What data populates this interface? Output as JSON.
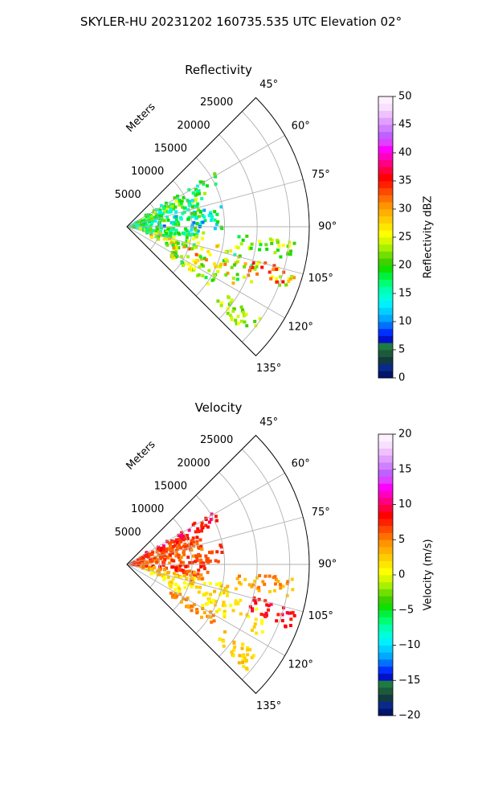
{
  "figure": {
    "title": "SKYLER-HU  20231202  160735.535 UTC Elevation 02°"
  },
  "chart_data": [
    {
      "type": "heatmap",
      "subtype": "polar-sector",
      "title": "Reflectivity",
      "radial_label": "Meters",
      "range_ticks": [
        "5000",
        "10000",
        "15000",
        "20000",
        "25000"
      ],
      "range_values": [
        5000,
        10000,
        15000,
        20000,
        25000
      ],
      "range_max": 28000,
      "azimuth_ticks": [
        "45°",
        "60°",
        "75°",
        "90°",
        "105°",
        "120°",
        "135°"
      ],
      "azimuth_values": [
        45,
        60,
        75,
        90,
        105,
        120,
        135
      ],
      "azimuth_range": [
        45,
        135
      ],
      "grid": true,
      "colorbar": {
        "label": "Reflectivity dBZ",
        "min": 0,
        "max": 50,
        "ticks": [
          "0",
          "5",
          "10",
          "15",
          "20",
          "25",
          "30",
          "35",
          "40",
          "45",
          "50"
        ],
        "tick_values": [
          0,
          5,
          10,
          15,
          20,
          25,
          30,
          35,
          40,
          45,
          50
        ],
        "colors": [
          "#00156b",
          "#0a2a8a",
          "#123a40",
          "#1b5a3a",
          "#1f7a40",
          "#0011c8",
          "#0030ff",
          "#0070ff",
          "#00a8ff",
          "#00d0ff",
          "#00f0ff",
          "#00ffd8",
          "#00ffb0",
          "#00ff70",
          "#00f040",
          "#10e000",
          "#40d000",
          "#70e000",
          "#a8f000",
          "#d8f800",
          "#ffff00",
          "#ffe600",
          "#ffcc00",
          "#ffb000",
          "#ff9400",
          "#ff7000",
          "#ff4800",
          "#ff2000",
          "#ff0000",
          "#ff0040",
          "#ff0080",
          "#ff00c0",
          "#ff00ff",
          "#e040ff",
          "#c060ff",
          "#d080ff",
          "#e0a0ff",
          "#f0c0ff",
          "#f8e0ff",
          "#fff0ff"
        ]
      },
      "clusters": [
        {
          "az": 62,
          "r": [
            3000,
            16000
          ],
          "v": [
            14,
            22
          ]
        },
        {
          "az": 66,
          "r": [
            2000,
            13000
          ],
          "v": [
            16,
            26
          ]
        },
        {
          "az": 70,
          "r": [
            1500,
            11000
          ],
          "v": [
            12,
            24
          ]
        },
        {
          "az": 75,
          "r": [
            1000,
            12000
          ],
          "v": [
            14,
            22
          ]
        },
        {
          "az": 80,
          "r": [
            500,
            15000
          ],
          "v": [
            10,
            22
          ]
        },
        {
          "az": 85,
          "r": [
            500,
            14000
          ],
          "v": [
            10,
            20
          ]
        },
        {
          "az": 90,
          "r": [
            500,
            15000
          ],
          "v": [
            8,
            22
          ]
        },
        {
          "az": 95,
          "r": [
            1000,
            13000
          ],
          "v": [
            12,
            24
          ]
        },
        {
          "az": 100,
          "r": [
            2000,
            12000
          ],
          "v": [
            14,
            26
          ]
        },
        {
          "az": 105,
          "r": [
            3000,
            18000
          ],
          "v": [
            16,
            30
          ]
        },
        {
          "az": 110,
          "r": [
            4000,
            22000
          ],
          "v": [
            18,
            34
          ]
        },
        {
          "az": 115,
          "r": [
            6000,
            24000
          ],
          "v": [
            18,
            32
          ]
        },
        {
          "az": 122,
          "r": [
            8000,
            16000
          ],
          "v": [
            18,
            28
          ]
        },
        {
          "az": 128,
          "r": [
            18000,
            25000
          ],
          "v": [
            20,
            26
          ]
        },
        {
          "az": 98,
          "r": [
            17000,
            26000
          ],
          "v": [
            18,
            26
          ]
        },
        {
          "az": 108,
          "r": [
            20000,
            27000
          ],
          "v": [
            22,
            36
          ]
        }
      ]
    },
    {
      "type": "heatmap",
      "subtype": "polar-sector",
      "title": "Velocity",
      "radial_label": "Meters",
      "range_ticks": [
        "5000",
        "10000",
        "15000",
        "20000",
        "25000"
      ],
      "range_values": [
        5000,
        10000,
        15000,
        20000,
        25000
      ],
      "range_max": 28000,
      "azimuth_ticks": [
        "45°",
        "60°",
        "75°",
        "90°",
        "105°",
        "120°",
        "135°"
      ],
      "azimuth_values": [
        45,
        60,
        75,
        90,
        105,
        120,
        135
      ],
      "azimuth_range": [
        45,
        135
      ],
      "grid": true,
      "colorbar": {
        "label": "Velocity (m/s)",
        "min": -20,
        "max": 20,
        "ticks": [
          "−20",
          "−15",
          "−10",
          "−5",
          "0",
          "5",
          "10",
          "15",
          "20"
        ],
        "tick_values": [
          -20,
          -15,
          -10,
          -5,
          0,
          5,
          10,
          15,
          20
        ],
        "colors": [
          "#00156b",
          "#0a2a8a",
          "#123a40",
          "#1b5a3a",
          "#1f7a40",
          "#0011c8",
          "#0030ff",
          "#0070ff",
          "#00a8ff",
          "#00d0ff",
          "#00f0ff",
          "#00ffd8",
          "#00ffb0",
          "#00ff70",
          "#00f040",
          "#10e000",
          "#40d000",
          "#70e000",
          "#a8f000",
          "#d8f800",
          "#ffff00",
          "#ffe600",
          "#ffcc00",
          "#ffb000",
          "#ff9400",
          "#ff7000",
          "#ff4800",
          "#ff2000",
          "#ff0000",
          "#ff0040",
          "#ff0080",
          "#ff00c0",
          "#ff00ff",
          "#e040ff",
          "#c060ff",
          "#d080ff",
          "#e0a0ff",
          "#f0c0ff",
          "#f8e0ff",
          "#fff0ff"
        ]
      },
      "clusters": [
        {
          "az": 62,
          "r": [
            3000,
            16000
          ],
          "v": [
            7,
            11
          ]
        },
        {
          "az": 66,
          "r": [
            2000,
            13000
          ],
          "v": [
            6,
            9
          ]
        },
        {
          "az": 70,
          "r": [
            1500,
            11000
          ],
          "v": [
            5,
            8
          ]
        },
        {
          "az": 75,
          "r": [
            1000,
            12000
          ],
          "v": [
            5,
            8
          ]
        },
        {
          "az": 80,
          "r": [
            500,
            15000
          ],
          "v": [
            4,
            8
          ]
        },
        {
          "az": 85,
          "r": [
            500,
            14000
          ],
          "v": [
            4,
            8
          ]
        },
        {
          "az": 90,
          "r": [
            500,
            15000
          ],
          "v": [
            5,
            9
          ]
        },
        {
          "az": 95,
          "r": [
            1000,
            13000
          ],
          "v": [
            5,
            9
          ]
        },
        {
          "az": 100,
          "r": [
            2000,
            12000
          ],
          "v": [
            3,
            7
          ]
        },
        {
          "az": 105,
          "r": [
            3000,
            18000
          ],
          "v": [
            0,
            4
          ]
        },
        {
          "az": 110,
          "r": [
            4000,
            22000
          ],
          "v": [
            0,
            3
          ]
        },
        {
          "az": 115,
          "r": [
            6000,
            24000
          ],
          "v": [
            0,
            3
          ]
        },
        {
          "az": 122,
          "r": [
            8000,
            16000
          ],
          "v": [
            3,
            6
          ]
        },
        {
          "az": 128,
          "r": [
            18000,
            25000
          ],
          "v": [
            1,
            4
          ]
        },
        {
          "az": 98,
          "r": [
            17000,
            26000
          ],
          "v": [
            2,
            6
          ]
        },
        {
          "az": 108,
          "r": [
            20000,
            27000
          ],
          "v": [
            7,
            10
          ]
        }
      ]
    }
  ]
}
